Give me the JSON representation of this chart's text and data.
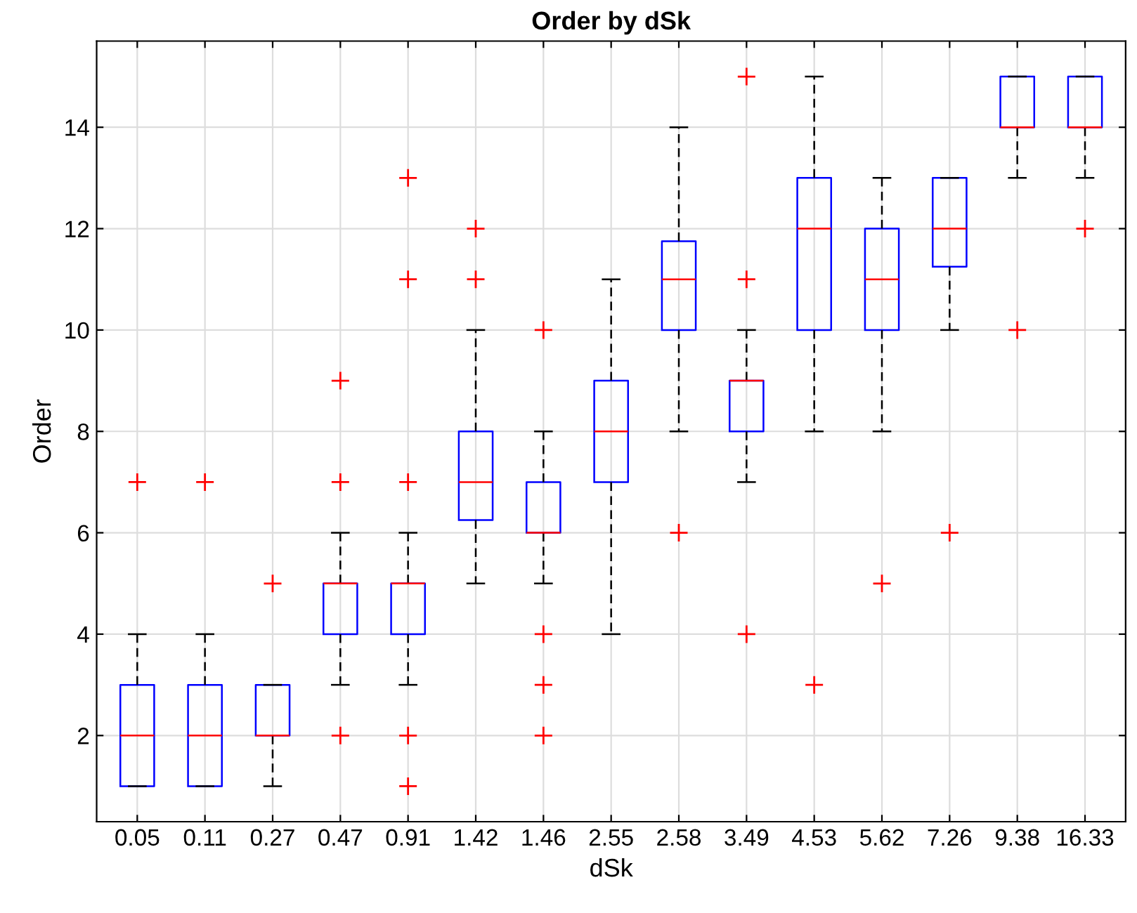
{
  "chart_data": {
    "type": "box",
    "title": "Order by dSk",
    "xlabel": "dSk",
    "ylabel": "Order",
    "categories": [
      "0.05",
      "0.11",
      "0.27",
      "0.47",
      "0.91",
      "1.42",
      "1.46",
      "2.55",
      "2.58",
      "3.49",
      "4.53",
      "5.62",
      "7.26",
      "9.38",
      "16.33"
    ],
    "color": "#0000ff",
    "boxes": [
      {
        "low": 1,
        "q1": 1,
        "median": 2,
        "q3": 3,
        "high": 4,
        "outliers": [
          7
        ]
      },
      {
        "low": 1,
        "q1": 1,
        "median": 2,
        "q3": 3,
        "high": 4,
        "outliers": [
          7
        ]
      },
      {
        "low": 1,
        "q1": 2,
        "median": 2,
        "q3": 3,
        "high": 3,
        "outliers": [
          5
        ]
      },
      {
        "low": 3,
        "q1": 4,
        "median": 5,
        "q3": 5,
        "high": 6,
        "outliers": [
          9,
          7,
          2
        ]
      },
      {
        "low": 3,
        "q1": 4,
        "median": 5,
        "q3": 5,
        "high": 6,
        "outliers": [
          13,
          11,
          7,
          2,
          1
        ]
      },
      {
        "low": 5,
        "q1": 6.25,
        "median": 7,
        "q3": 8,
        "high": 10,
        "outliers": [
          12,
          11
        ]
      },
      {
        "low": 5,
        "q1": 6,
        "median": 6,
        "q3": 7,
        "high": 8,
        "outliers": [
          10,
          4,
          3,
          2
        ]
      },
      {
        "low": 4,
        "q1": 7,
        "median": 8,
        "q3": 9,
        "high": 11
      },
      {
        "low": 8,
        "q1": 10,
        "median": 11,
        "q3": 11.75,
        "high": 14,
        "outliers": [
          6
        ]
      },
      {
        "low": 7,
        "q1": 8,
        "median": 9,
        "q3": 9,
        "high": 10,
        "outliers": [
          15,
          11,
          4
        ]
      },
      {
        "low": 8,
        "q1": 10,
        "median": 12,
        "q3": 13,
        "high": 15,
        "outliers": [
          3
        ]
      },
      {
        "low": 8,
        "q1": 10,
        "median": 11,
        "q3": 12,
        "high": 13,
        "outliers": [
          5
        ]
      },
      {
        "low": 10,
        "q1": 11.25,
        "median": 12,
        "q3": 13,
        "high": 13,
        "outliers": [
          6
        ]
      },
      {
        "low": 13,
        "q1": 14,
        "median": 14,
        "q3": 15,
        "high": 15,
        "outliers": [
          10
        ]
      },
      {
        "low": 13,
        "q1": 14,
        "median": 14,
        "q3": 15,
        "high": 15,
        "outliers": [
          12
        ]
      }
    ],
    "ylim": [
      0.3,
      15.7
    ],
    "yticks": [
      2,
      4,
      6,
      8,
      10,
      12,
      14
    ],
    "grid": true
  }
}
